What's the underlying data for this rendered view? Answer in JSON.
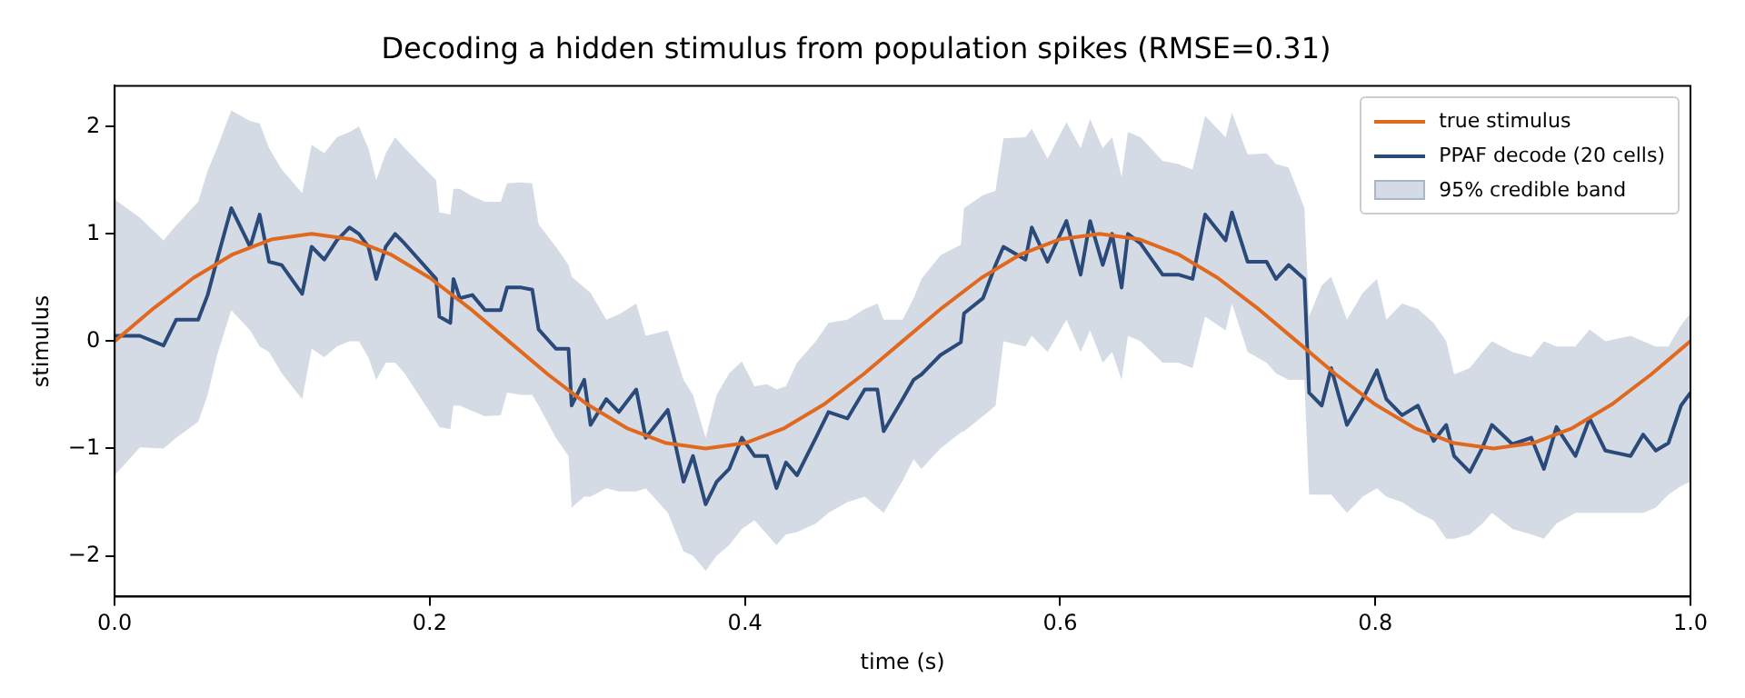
{
  "chart_data": {
    "type": "line",
    "title": "Decoding a hidden stimulus from population spikes (RMSE=0.31)",
    "xlabel": "time (s)",
    "ylabel": "stimulus",
    "xlim": [
      0,
      1
    ],
    "xticks": [
      {
        "value": 0,
        "label": "0.0"
      },
      {
        "value": 0.2,
        "label": "0.2"
      },
      {
        "value": 0.4,
        "label": "0.4"
      },
      {
        "value": 0.6,
        "label": "0.6"
      },
      {
        "value": 0.8,
        "label": "0.8"
      },
      {
        "value": 1,
        "label": "1.0"
      }
    ],
    "ylim": [
      -2.38,
      2.38
    ],
    "yticks": [
      {
        "value": -2,
        "label": "−2"
      },
      {
        "value": -1,
        "label": "−1"
      },
      0,
      1,
      2
    ],
    "annotations": [
      "95% credible band"
    ],
    "grid": false,
    "legend": "top right",
    "marker": "none",
    "line_style": "solid",
    "series": [
      {
        "name": "true stimulus",
        "color": "#e0691f",
        "x": [
          0,
          0.025,
          0.05,
          0.075,
          0.1,
          0.125,
          0.15,
          0.175,
          0.2,
          0.225,
          0.25,
          0.275,
          0.3,
          0.325,
          0.35,
          0.375,
          0.4,
          0.425,
          0.45,
          0.475,
          0.5,
          0.525,
          0.55,
          0.575,
          0.6,
          0.625,
          0.65,
          0.675,
          0.7,
          0.725,
          0.75,
          0.775,
          0.8,
          0.825,
          0.85,
          0.875,
          0.9,
          0.925,
          0.95,
          0.975,
          1
        ],
        "values": [
          0,
          0.31,
          0.59,
          0.81,
          0.95,
          1,
          0.95,
          0.81,
          0.59,
          0.31,
          0,
          -0.31,
          -0.59,
          -0.81,
          -0.95,
          -1,
          -0.95,
          -0.81,
          -0.59,
          -0.31,
          0,
          0.31,
          0.59,
          0.81,
          0.95,
          1,
          0.95,
          0.81,
          0.59,
          0.31,
          0,
          -0.31,
          -0.59,
          -0.81,
          -0.95,
          -1,
          -0.95,
          -0.81,
          -0.59,
          -0.31,
          0
        ]
      },
      {
        "name": "PPAF decode (20 cells)",
        "color": "#2a4a7a",
        "x": [
          0,
          0.016,
          0.031,
          0.039,
          0.053,
          0.059,
          0.065,
          0.074,
          0.086,
          0.092,
          0.098,
          0.106,
          0.119,
          0.125,
          0.133,
          0.141,
          0.149,
          0.155,
          0.161,
          0.166,
          0.172,
          0.178,
          0.184,
          0.204,
          0.206,
          0.213,
          0.215,
          0.219,
          0.227,
          0.235,
          0.245,
          0.249,
          0.258,
          0.265,
          0.269,
          0.28,
          0.288,
          0.29,
          0.298,
          0.302,
          0.312,
          0.32,
          0.331,
          0.337,
          0.351,
          0.361,
          0.367,
          0.375,
          0.382,
          0.39,
          0.398,
          0.406,
          0.414,
          0.42,
          0.426,
          0.433,
          0.445,
          0.453,
          0.465,
          0.476,
          0.484,
          0.488,
          0.5,
          0.507,
          0.512,
          0.524,
          0.537,
          0.539,
          0.551,
          0.559,
          0.564,
          0.578,
          0.582,
          0.592,
          0.604,
          0.613,
          0.619,
          0.627,
          0.633,
          0.639,
          0.643,
          0.651,
          0.665,
          0.675,
          0.684,
          0.692,
          0.705,
          0.709,
          0.719,
          0.731,
          0.737,
          0.745,
          0.755,
          0.758,
          0.766,
          0.772,
          0.782,
          0.792,
          0.801,
          0.807,
          0.817,
          0.827,
          0.837,
          0.845,
          0.85,
          0.86,
          0.868,
          0.874,
          0.887,
          0.899,
          0.907,
          0.915,
          0.927,
          0.936,
          0.946,
          0.962,
          0.97,
          0.978,
          0.986,
          0.994,
          1
        ],
        "lower": [
          -1.25,
          -0.99,
          -1.0,
          -0.9,
          -0.75,
          -0.5,
          -0.13,
          0.29,
          0.1,
          -0.05,
          -0.1,
          -0.3,
          -0.54,
          -0.07,
          -0.15,
          -0.05,
          0.0,
          0.0,
          -0.15,
          -0.36,
          -0.2,
          -0.2,
          -0.3,
          -0.75,
          -0.8,
          -0.82,
          -0.6,
          -0.6,
          -0.65,
          -0.7,
          -0.69,
          -0.48,
          -0.5,
          -0.5,
          -0.6,
          -0.9,
          -1.07,
          -1.55,
          -1.45,
          -1.45,
          -1.37,
          -1.4,
          -1.4,
          -1.37,
          -1.6,
          -1.96,
          -2.0,
          -2.14,
          -2.0,
          -1.9,
          -1.75,
          -1.67,
          -1.8,
          -1.9,
          -1.8,
          -1.78,
          -1.7,
          -1.6,
          -1.5,
          -1.45,
          -1.55,
          -1.6,
          -1.3,
          -1.1,
          -1.19,
          -1.0,
          -0.85,
          -0.84,
          -0.7,
          -0.6,
          0.0,
          -0.05,
          0.05,
          -0.1,
          0.2,
          -0.1,
          0.1,
          -0.2,
          -0.1,
          -0.36,
          0.05,
          0.0,
          -0.2,
          -0.2,
          -0.25,
          0.23,
          0.1,
          0.35,
          -0.1,
          -0.2,
          -0.3,
          -0.36,
          -0.36,
          -1.43,
          -1.43,
          -1.43,
          -1.6,
          -1.45,
          -1.37,
          -1.45,
          -1.5,
          -1.6,
          -1.67,
          -1.84,
          -1.84,
          -1.8,
          -1.7,
          -1.6,
          -1.75,
          -1.8,
          -1.84,
          -1.7,
          -1.6,
          -1.6,
          -1.6,
          -1.6,
          -1.6,
          -1.55,
          -1.43,
          -1.35,
          -1.31
        ],
        "upper": [
          1.32,
          1.15,
          0.94,
          1.08,
          1.3,
          1.59,
          1.8,
          2.15,
          2.05,
          2.03,
          1.8,
          1.6,
          1.38,
          1.83,
          1.75,
          1.9,
          1.95,
          2.0,
          1.8,
          1.5,
          1.75,
          1.9,
          1.8,
          1.5,
          1.2,
          1.18,
          1.42,
          1.42,
          1.35,
          1.3,
          1.3,
          1.47,
          1.48,
          1.47,
          1.09,
          0.88,
          0.71,
          0.6,
          0.5,
          0.45,
          0.2,
          0.25,
          0.35,
          0.05,
          0.1,
          -0.36,
          -0.5,
          -0.9,
          -0.5,
          -0.3,
          -0.19,
          -0.42,
          -0.4,
          -0.45,
          -0.42,
          -0.2,
          0.0,
          0.17,
          0.2,
          0.3,
          0.35,
          0.2,
          0.2,
          0.4,
          0.58,
          0.8,
          0.9,
          1.24,
          1.36,
          1.4,
          1.89,
          1.9,
          1.98,
          1.7,
          2.04,
          1.8,
          2.07,
          1.8,
          1.9,
          1.53,
          1.95,
          1.9,
          1.68,
          1.65,
          1.6,
          2.1,
          1.9,
          2.13,
          1.74,
          1.75,
          1.65,
          1.62,
          1.24,
          0.23,
          0.52,
          0.6,
          0.2,
          0.45,
          0.58,
          0.2,
          0.35,
          0.3,
          0.17,
          0.0,
          -0.31,
          -0.25,
          -0.1,
          0.0,
          -0.1,
          -0.15,
          0.0,
          -0.05,
          -0.05,
          0.11,
          0.0,
          0.05,
          0.0,
          -0.05,
          -0.05,
          0.15,
          0.26
        ],
        "values": [
          0.05,
          0.05,
          -0.04,
          0.2,
          0.2,
          0.43,
          0.76,
          1.24,
          0.88,
          1.18,
          0.74,
          0.71,
          0.44,
          0.88,
          0.76,
          0.94,
          1.06,
          1.0,
          0.88,
          0.58,
          0.88,
          1.0,
          0.91,
          0.58,
          0.23,
          0.17,
          0.58,
          0.4,
          0.43,
          0.29,
          0.29,
          0.5,
          0.5,
          0.48,
          0.11,
          -0.07,
          -0.07,
          -0.6,
          -0.36,
          -0.78,
          -0.54,
          -0.66,
          -0.45,
          -0.9,
          -0.64,
          -1.31,
          -1.07,
          -1.52,
          -1.31,
          -1.19,
          -0.9,
          -1.07,
          -1.07,
          -1.37,
          -1.13,
          -1.25,
          -0.9,
          -0.66,
          -0.72,
          -0.45,
          -0.45,
          -0.84,
          -0.54,
          -0.36,
          -0.31,
          -0.13,
          -0.01,
          0.26,
          0.4,
          0.71,
          0.88,
          0.76,
          1.06,
          0.74,
          1.12,
          0.62,
          1.12,
          0.71,
          1.0,
          0.5,
          1.0,
          0.91,
          0.62,
          0.62,
          0.58,
          1.18,
          0.94,
          1.2,
          0.74,
          0.74,
          0.58,
          0.71,
          0.58,
          -0.48,
          -0.6,
          -0.25,
          -0.78,
          -0.54,
          -0.27,
          -0.54,
          -0.69,
          -0.6,
          -0.93,
          -0.78,
          -1.07,
          -1.22,
          -0.99,
          -0.78,
          -0.96,
          -0.9,
          -1.19,
          -0.8,
          -1.07,
          -0.72,
          -1.02,
          -1.07,
          -0.87,
          -1.02,
          -0.95,
          -0.6,
          -0.48
        ]
      }
    ]
  }
}
